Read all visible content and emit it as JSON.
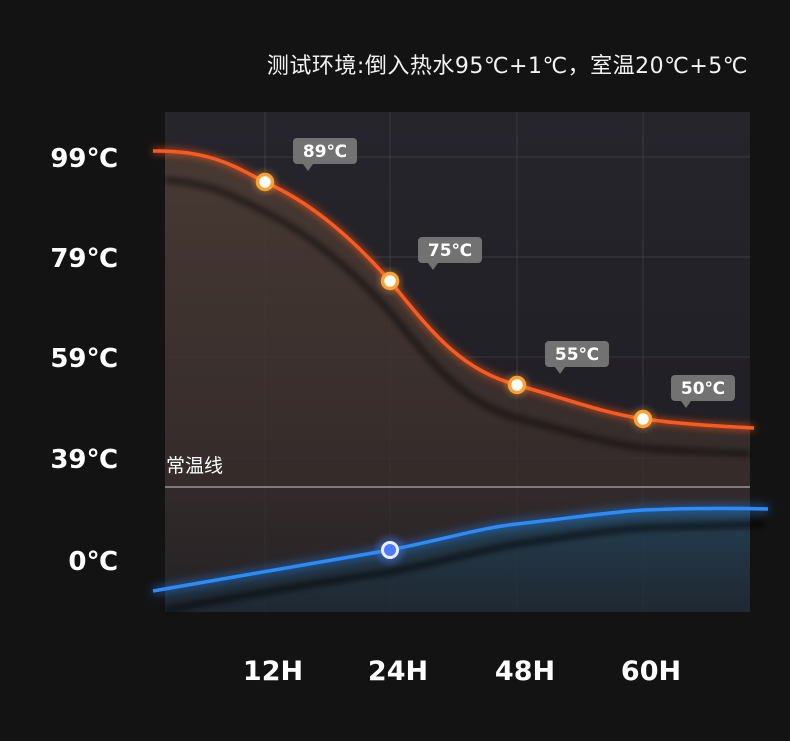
{
  "caption": "测试环境:倒入热水95℃+1℃，室温20℃+5℃",
  "chart_data": {
    "type": "line",
    "title": "测试环境:倒入热水95℃+1℃，室温20℃+5℃",
    "y_tick_labels": [
      "99℃",
      "79℃",
      "59℃",
      "39℃",
      "0℃"
    ],
    "x_tick_labels": [
      "12H",
      "24H",
      "48H",
      "60H"
    ],
    "reference_line": {
      "label": "常温线"
    },
    "series": [
      {
        "color": "#ff5a1f",
        "points": [
          {
            "x": "12H",
            "label": "89℃"
          },
          {
            "x": "24H",
            "label": "75℃"
          },
          {
            "x": "48H",
            "label": "55℃"
          },
          {
            "x": "60H",
            "label": "50℃"
          }
        ]
      },
      {
        "color": "#2a8cff",
        "points": [
          {
            "x": "24H"
          }
        ]
      }
    ],
    "grid": true,
    "colors": {
      "hot": "#ff5a1f",
      "cold": "#2a8cff",
      "background": "#131313",
      "plot": "#24222a"
    }
  }
}
